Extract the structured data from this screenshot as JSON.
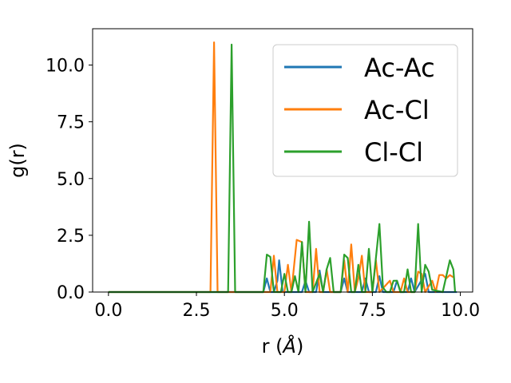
{
  "chart_data": {
    "type": "line",
    "xlabel_prefix": "r (",
    "xlabel_unit": "Å",
    "xlabel_suffix": ")",
    "ylabel": "g(r)",
    "xlim": [
      -0.45,
      10.35
    ],
    "ylim": [
      0,
      11.6
    ],
    "x_ticks": [
      0,
      2.5,
      5,
      7.5,
      10
    ],
    "x_tick_labels": [
      "0.0",
      "2.5",
      "5.0",
      "7.5",
      "10.0"
    ],
    "y_ticks": [
      0,
      2.5,
      5,
      7.5,
      10
    ],
    "y_tick_labels": [
      "0.0",
      "2.5",
      "5.0",
      "7.5",
      "10.0"
    ],
    "grid": false,
    "legend_position": "top-right",
    "series": [
      {
        "name": "Ac-Ac",
        "color": "#1f77b4",
        "points": [
          [
            0,
            0
          ],
          [
            4.4,
            0
          ],
          [
            4.5,
            0.6
          ],
          [
            4.6,
            0
          ],
          [
            4.7,
            0
          ],
          [
            4.8,
            0.5
          ],
          [
            4.85,
            1.4
          ],
          [
            4.95,
            0
          ],
          [
            5.5,
            0
          ],
          [
            5.6,
            0.5
          ],
          [
            5.7,
            0
          ],
          [
            5.9,
            0
          ],
          [
            6.0,
            0.95
          ],
          [
            6.1,
            0
          ],
          [
            6.6,
            0
          ],
          [
            6.7,
            0.6
          ],
          [
            6.8,
            0
          ],
          [
            7.2,
            0
          ],
          [
            7.3,
            0.6
          ],
          [
            7.4,
            0
          ],
          [
            7.6,
            0
          ],
          [
            7.7,
            0.7
          ],
          [
            7.8,
            0
          ],
          [
            8.1,
            0
          ],
          [
            8.2,
            0.5
          ],
          [
            8.3,
            0
          ],
          [
            8.5,
            0
          ],
          [
            8.6,
            0.6
          ],
          [
            8.7,
            0
          ],
          [
            9.0,
            0.8
          ],
          [
            9.1,
            0
          ],
          [
            9.9,
            0
          ]
        ]
      },
      {
        "name": "Ac-Cl",
        "color": "#ff7f0e",
        "points": [
          [
            0,
            0
          ],
          [
            2.9,
            0
          ],
          [
            3.0,
            11.0
          ],
          [
            3.1,
            0
          ],
          [
            4.6,
            0
          ],
          [
            4.7,
            1.6
          ],
          [
            4.8,
            0
          ],
          [
            5.0,
            0
          ],
          [
            5.1,
            1.2
          ],
          [
            5.2,
            0
          ],
          [
            5.35,
            2.3
          ],
          [
            5.5,
            2.2
          ],
          [
            5.6,
            0
          ],
          [
            5.8,
            0
          ],
          [
            5.9,
            1.9
          ],
          [
            6.0,
            0
          ],
          [
            6.1,
            0
          ],
          [
            6.2,
            1.0
          ],
          [
            6.3,
            0
          ],
          [
            6.6,
            0
          ],
          [
            6.7,
            1.4
          ],
          [
            6.8,
            0
          ],
          [
            6.9,
            2.1
          ],
          [
            7.0,
            0
          ],
          [
            7.1,
            0.6
          ],
          [
            7.2,
            1.6
          ],
          [
            7.3,
            0
          ],
          [
            7.5,
            0
          ],
          [
            7.6,
            1.4
          ],
          [
            7.7,
            0
          ],
          [
            8.0,
            0.5
          ],
          [
            8.1,
            0
          ],
          [
            8.3,
            0
          ],
          [
            8.4,
            0.6
          ],
          [
            8.5,
            0
          ],
          [
            8.7,
            0
          ],
          [
            8.8,
            0.9
          ],
          [
            8.9,
            0.8
          ],
          [
            9.0,
            0
          ],
          [
            9.2,
            0.5
          ],
          [
            9.3,
            0
          ],
          [
            9.4,
            0.75
          ],
          [
            9.5,
            0.75
          ],
          [
            9.6,
            0.6
          ],
          [
            9.7,
            0.75
          ],
          [
            9.8,
            0.65
          ]
        ]
      },
      {
        "name": "Cl-Cl",
        "color": "#2ca02c",
        "points": [
          [
            0,
            0
          ],
          [
            3.4,
            0
          ],
          [
            3.5,
            10.9
          ],
          [
            3.6,
            0
          ],
          [
            4.4,
            0
          ],
          [
            4.5,
            1.65
          ],
          [
            4.6,
            1.55
          ],
          [
            4.7,
            0
          ],
          [
            4.9,
            0
          ],
          [
            5.0,
            0.8
          ],
          [
            5.1,
            0
          ],
          [
            5.2,
            0
          ],
          [
            5.3,
            0.7
          ],
          [
            5.4,
            0
          ],
          [
            5.5,
            2.2
          ],
          [
            5.6,
            0
          ],
          [
            5.7,
            3.1
          ],
          [
            5.8,
            0
          ],
          [
            6.0,
            0.8
          ],
          [
            6.1,
            0
          ],
          [
            6.2,
            1.0
          ],
          [
            6.3,
            1.5
          ],
          [
            6.4,
            0
          ],
          [
            6.6,
            0
          ],
          [
            6.7,
            1.65
          ],
          [
            6.8,
            1.5
          ],
          [
            6.9,
            0
          ],
          [
            7.0,
            0
          ],
          [
            7.1,
            1.2
          ],
          [
            7.2,
            0
          ],
          [
            7.3,
            0
          ],
          [
            7.4,
            1.9
          ],
          [
            7.5,
            0
          ],
          [
            7.7,
            3.0
          ],
          [
            7.8,
            0.2
          ],
          [
            7.9,
            0
          ],
          [
            8.0,
            0
          ],
          [
            8.1,
            0.5
          ],
          [
            8.2,
            0.5
          ],
          [
            8.3,
            0
          ],
          [
            8.4,
            0
          ],
          [
            8.5,
            1.0
          ],
          [
            8.6,
            0
          ],
          [
            8.7,
            0
          ],
          [
            8.8,
            3.0
          ],
          [
            8.9,
            0
          ],
          [
            9.0,
            1.2
          ],
          [
            9.1,
            0.9
          ],
          [
            9.2,
            0.1
          ],
          [
            9.5,
            0
          ],
          [
            9.7,
            1.4
          ],
          [
            9.8,
            1.0
          ],
          [
            9.85,
            0
          ]
        ]
      }
    ]
  }
}
